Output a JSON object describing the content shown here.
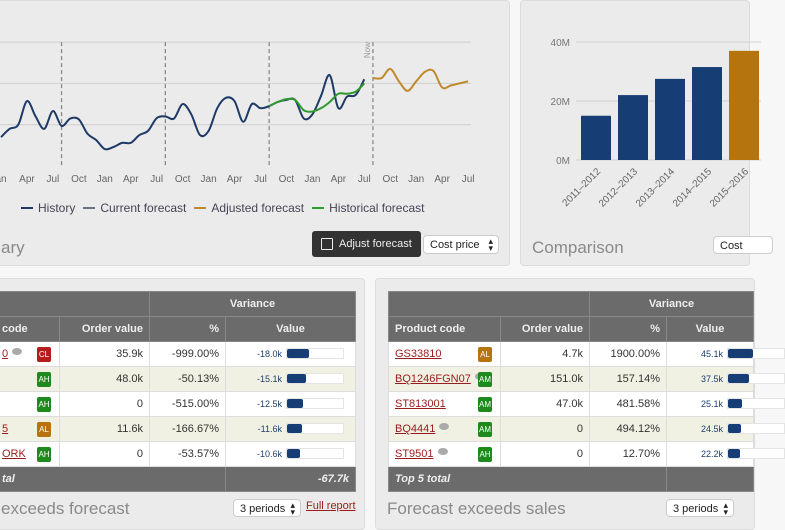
{
  "summary": {
    "title": "ary",
    "adjust_button": "Adjust forecast",
    "measure_select": "Cost price",
    "now_label": "Now",
    "legend": [
      {
        "label": "History",
        "color": "#1e3a66"
      },
      {
        "label": "Current forecast",
        "color": "#6b7280"
      },
      {
        "label": "Adjusted forecast",
        "color": "#c08a2c"
      },
      {
        "label": "Historical forecast",
        "color": "#2e9a2e"
      }
    ]
  },
  "chart_data": [
    {
      "type": "line",
      "title": "",
      "xlabel": "",
      "ylabel": "",
      "x_ticks": [
        "an",
        "Apr",
        "Jul",
        "Oct",
        "Jan",
        "Apr",
        "Jul",
        "Oct",
        "Jan",
        "Apr",
        "Jul",
        "Oct",
        "Jan",
        "Apr",
        "Jul",
        "Oct",
        "Jan",
        "Apr",
        "Jul"
      ],
      "grid": true,
      "legend_position": "bottom",
      "series": [
        {
          "name": "History",
          "color": "#1e3a66",
          "start_month": 0,
          "values": [
            0.7,
            0.9,
            1.0,
            1.57,
            1.2,
            0.9,
            1.33,
            0.97,
            1.15,
            1.13,
            0.78,
            0.63,
            0.41,
            0.46,
            0.56,
            0.56,
            0.75,
            0.85,
            1.16,
            1.2,
            1.15,
            1.5,
            1.25,
            0.75,
            0.85,
            1.4,
            1.65,
            1.57,
            1.07,
            1.5,
            1.4,
            1.45,
            1.55,
            1.6,
            1.6,
            1.15,
            1.25,
            1.7,
            2.2,
            1.4,
            1.68,
            1.72,
            2.1
          ]
        },
        {
          "name": "Historical forecast",
          "color": "#2e9a2e",
          "start_month": 31,
          "values": [
            1.45,
            1.55,
            1.62,
            1.6,
            1.35,
            1.32,
            1.4,
            1.55,
            1.75,
            1.75,
            1.8,
            2.0
          ]
        },
        {
          "name": "Adjusted forecast",
          "color": "#c08a2c",
          "start_month": 43,
          "values": [
            2.13,
            2.13,
            2.35,
            2.05,
            1.82,
            2.05,
            2.28,
            2.3,
            1.9,
            1.95,
            2.0,
            2.05
          ]
        }
      ]
    },
    {
      "type": "bar",
      "title": "",
      "xlabel": "",
      "ylabel": "",
      "categories": [
        "2011–2012",
        "2012–2013",
        "2013–2014",
        "2014–2015",
        "2015–2016"
      ],
      "values": [
        15,
        22,
        27.5,
        31.5,
        37
      ],
      "colors": [
        "#163e74",
        "#163e74",
        "#163e74",
        "#163e74",
        "#b5740e"
      ],
      "y_ticks": [
        "0M",
        "20M",
        "40M"
      ],
      "ylim": [
        0,
        40
      ],
      "unit": "M"
    }
  ],
  "comparison": {
    "title": "Comparison",
    "measure_select": "Cost"
  },
  "left_table": {
    "group_header": "Variance",
    "columns": [
      "code",
      "Order value",
      "%",
      "Value"
    ],
    "rows": [
      {
        "code": "0",
        "comment": true,
        "badge": "CL",
        "badge_color": "#b71c1c",
        "order": "35.9k",
        "pct": "-999.00%",
        "value": "-18.0k",
        "fill": 0.4
      },
      {
        "code": "",
        "comment": false,
        "badge": "AH",
        "badge_color": "#1e8a1e",
        "order": "48.0k",
        "pct": "-50.13%",
        "value": "-15.1k",
        "fill": 0.34
      },
      {
        "code": "",
        "comment": false,
        "badge": "AH",
        "badge_color": "#1e8a1e",
        "order": "0",
        "pct": "-515.00%",
        "value": "-12.5k",
        "fill": 0.28
      },
      {
        "code": "5",
        "comment": false,
        "badge": "AL",
        "badge_color": "#b5740e",
        "order": "11.6k",
        "pct": "-166.67%",
        "value": "-11.6k",
        "fill": 0.26
      },
      {
        "code": "ORK",
        "comment": false,
        "badge": "AH",
        "badge_color": "#1e8a1e",
        "order": "0",
        "pct": "-53.57%",
        "value": "-10.6k",
        "fill": 0.24
      }
    ],
    "total_label": "tal",
    "total_value": "-67.7k",
    "title": "exceeds forecast",
    "periods": "3 periods",
    "full_report": "Full report"
  },
  "right_table": {
    "group_header": "Variance",
    "columns": [
      "Product code",
      "Order value",
      "%",
      "Value"
    ],
    "rows": [
      {
        "code": "GS33810",
        "comment": false,
        "badge": "AL",
        "badge_color": "#b5740e",
        "order": "4.7k",
        "pct": "1900.00%",
        "value": "45.1k",
        "fill": 0.45
      },
      {
        "code": "BQ1246FGN07",
        "comment": true,
        "badge": "AM",
        "badge_color": "#1e8a1e",
        "order": "151.0k",
        "pct": "157.14%",
        "value": "37.5k",
        "fill": 0.37
      },
      {
        "code": "ST813001",
        "comment": false,
        "badge": "AM",
        "badge_color": "#1e8a1e",
        "order": "47.0k",
        "pct": "481.58%",
        "value": "25.1k",
        "fill": 0.25
      },
      {
        "code": "BQ4441",
        "comment": true,
        "badge": "AM",
        "badge_color": "#1e8a1e",
        "order": "0",
        "pct": "494.12%",
        "value": "24.5k",
        "fill": 0.24
      },
      {
        "code": "ST9501",
        "comment": true,
        "badge": "AH",
        "badge_color": "#1e8a1e",
        "order": "0",
        "pct": "12.70%",
        "value": "22.2k",
        "fill": 0.22
      }
    ],
    "total_label": "Top 5 total",
    "title": "Forecast exceeds sales",
    "periods": "3 periods"
  }
}
